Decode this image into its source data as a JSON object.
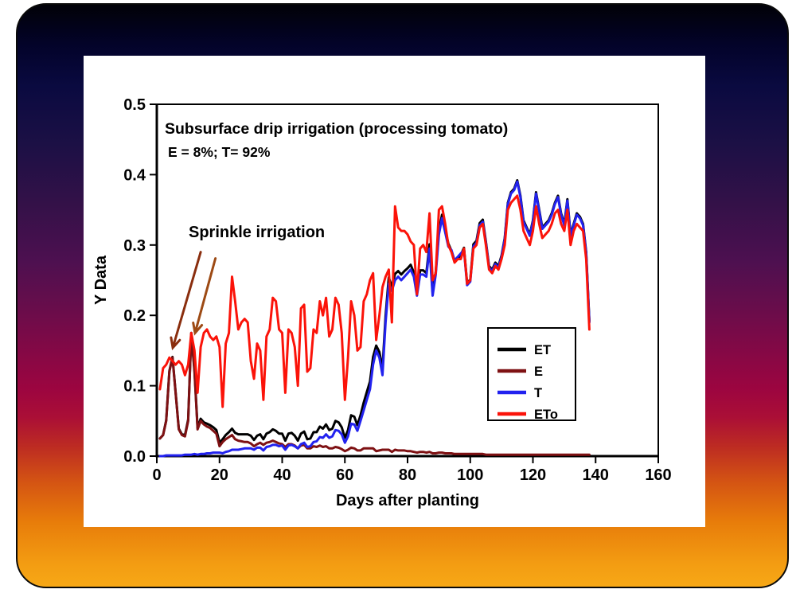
{
  "slide": {
    "background_gradient": [
      "#010107",
      "#0a0a40",
      "#331148",
      "#680d4b",
      "#9c0540",
      "#bd2c22",
      "#e87d0a",
      "#f7a816"
    ]
  },
  "chart": {
    "title": "Subsurface drip irrigation (processing tomato)",
    "subtitle": "E = 8%; T= 92%",
    "annotation": "Sprinkle irrigation",
    "x_axis": {
      "label": "Days after planting",
      "ticks": [
        0,
        20,
        40,
        60,
        80,
        100,
        120,
        140,
        160
      ]
    },
    "y_axis": {
      "label": "Y Data",
      "ticks": [
        "0.0",
        "0.1",
        "0.2",
        "0.3",
        "0.4",
        "0.5"
      ]
    },
    "legend": [
      {
        "label": "ET",
        "color": "#000000"
      },
      {
        "label": "E",
        "color": "#7e1113"
      },
      {
        "label": "T",
        "color": "#2222ef"
      },
      {
        "label": "ETo",
        "color": "#fb1309"
      }
    ],
    "annotation_arrows": [
      {
        "from": [
          14.0,
          0.29
        ],
        "to": [
          5.1,
          0.154
        ],
        "color": "#8a2e0e"
      },
      {
        "from": [
          18.7,
          0.281
        ],
        "to": [
          12.2,
          0.175
        ],
        "color": "#9d4a14"
      }
    ]
  },
  "chart_data": {
    "type": "line",
    "title": "Subsurface drip irrigation (processing tomato)",
    "subtitle": "E = 8%; T= 92%",
    "xlabel": "Days after planting",
    "ylabel": "Y Data",
    "xlim": [
      0,
      160
    ],
    "ylim": [
      0,
      0.5
    ],
    "grid": false,
    "legend_position": "right-center-inside",
    "x_start_day": 1,
    "x_step_days": 1,
    "n_points": 138,
    "series": [
      {
        "name": "ET",
        "color": "#000000",
        "values": [
          0.025,
          0.03,
          0.051,
          0.121,
          0.141,
          0.091,
          0.039,
          0.031,
          0.03,
          0.052,
          0.175,
          0.123,
          0.04,
          0.053,
          0.048,
          0.046,
          0.044,
          0.041,
          0.037,
          0.019,
          0.024,
          0.03,
          0.034,
          0.039,
          0.033,
          0.031,
          0.031,
          0.031,
          0.031,
          0.029,
          0.023,
          0.029,
          0.031,
          0.024,
          0.032,
          0.034,
          0.038,
          0.036,
          0.032,
          0.032,
          0.022,
          0.032,
          0.033,
          0.029,
          0.022,
          0.032,
          0.035,
          0.024,
          0.025,
          0.034,
          0.034,
          0.042,
          0.039,
          0.045,
          0.037,
          0.039,
          0.05,
          0.048,
          0.041,
          0.026,
          0.037,
          0.058,
          0.056,
          0.044,
          0.058,
          0.076,
          0.091,
          0.106,
          0.141,
          0.157,
          0.148,
          0.124,
          0.199,
          0.254,
          0.241,
          0.259,
          0.263,
          0.258,
          0.263,
          0.267,
          0.272,
          0.261,
          0.233,
          0.264,
          0.264,
          0.26,
          0.301,
          0.232,
          0.262,
          0.32,
          0.343,
          0.322,
          0.302,
          0.292,
          0.276,
          0.281,
          0.286,
          0.296,
          0.246,
          0.251,
          0.301,
          0.306,
          0.331,
          0.336,
          0.305,
          0.27,
          0.265,
          0.275,
          0.27,
          0.285,
          0.31,
          0.36,
          0.375,
          0.38,
          0.392,
          0.37,
          0.335,
          0.325,
          0.315,
          0.335,
          0.375,
          0.35,
          0.325,
          0.33,
          0.335,
          0.345,
          0.36,
          0.37,
          0.345,
          0.33,
          0.365,
          0.315,
          0.33,
          0.345,
          0.34,
          0.33,
          0.29,
          0.192
        ]
      },
      {
        "name": "E",
        "color": "#7e1113",
        "values": [
          0.025,
          0.03,
          0.05,
          0.12,
          0.14,
          0.09,
          0.038,
          0.03,
          0.028,
          0.05,
          0.173,
          0.12,
          0.038,
          0.05,
          0.045,
          0.042,
          0.04,
          0.036,
          0.032,
          0.014,
          0.02,
          0.024,
          0.027,
          0.03,
          0.024,
          0.022,
          0.021,
          0.02,
          0.02,
          0.018,
          0.014,
          0.017,
          0.019,
          0.016,
          0.019,
          0.02,
          0.022,
          0.02,
          0.018,
          0.017,
          0.013,
          0.017,
          0.017,
          0.015,
          0.011,
          0.015,
          0.016,
          0.011,
          0.011,
          0.014,
          0.013,
          0.015,
          0.013,
          0.014,
          0.011,
          0.011,
          0.013,
          0.012,
          0.01,
          0.007,
          0.009,
          0.012,
          0.011,
          0.008,
          0.008,
          0.011,
          0.011,
          0.011,
          0.011,
          0.007,
          0.008,
          0.009,
          0.009,
          0.009,
          0.006,
          0.009,
          0.008,
          0.008,
          0.008,
          0.007,
          0.007,
          0.006,
          0.005,
          0.006,
          0.006,
          0.005,
          0.006,
          0.004,
          0.004,
          0.005,
          0.005,
          0.004,
          0.004,
          0.004,
          0.003,
          0.003,
          0.003,
          0.003,
          0.003,
          0.003,
          0.003,
          0.003,
          0.003,
          0.003,
          0.002,
          0.002,
          0.002,
          0.002,
          0.002,
          0.002,
          0.002,
          0.002,
          0.002,
          0.002,
          0.002,
          0.002,
          0.002,
          0.002,
          0.002,
          0.002,
          0.002,
          0.002,
          0.002,
          0.002,
          0.002,
          0.002,
          0.002,
          0.002,
          0.002,
          0.002,
          0.002,
          0.002,
          0.002,
          0.002,
          0.002,
          0.002,
          0.002,
          0.002
        ]
      },
      {
        "name": "T",
        "color": "#2222ef",
        "values": [
          0,
          0,
          0.001,
          0.001,
          0.001,
          0.001,
          0.001,
          0.001,
          0.002,
          0.002,
          0.002,
          0.003,
          0.002,
          0.003,
          0.003,
          0.004,
          0.004,
          0.005,
          0.005,
          0.005,
          0.004,
          0.006,
          0.007,
          0.009,
          0.009,
          0.009,
          0.01,
          0.011,
          0.011,
          0.011,
          0.009,
          0.012,
          0.012,
          0.008,
          0.013,
          0.014,
          0.016,
          0.016,
          0.014,
          0.015,
          0.009,
          0.015,
          0.016,
          0.014,
          0.011,
          0.017,
          0.019,
          0.013,
          0.014,
          0.02,
          0.021,
          0.027,
          0.026,
          0.031,
          0.026,
          0.028,
          0.037,
          0.036,
          0.031,
          0.019,
          0.028,
          0.046,
          0.045,
          0.036,
          0.05,
          0.065,
          0.08,
          0.095,
          0.13,
          0.15,
          0.14,
          0.115,
          0.19,
          0.245,
          0.235,
          0.25,
          0.255,
          0.25,
          0.255,
          0.26,
          0.265,
          0.255,
          0.228,
          0.258,
          0.258,
          0.255,
          0.295,
          0.228,
          0.258,
          0.315,
          0.338,
          0.318,
          0.298,
          0.293,
          0.278,
          0.283,
          0.288,
          0.293,
          0.243,
          0.248,
          0.298,
          0.303,
          0.328,
          0.333,
          0.303,
          0.268,
          0.263,
          0.273,
          0.268,
          0.283,
          0.308,
          0.358,
          0.373,
          0.378,
          0.39,
          0.368,
          0.333,
          0.323,
          0.313,
          0.333,
          0.373,
          0.348,
          0.323,
          0.328,
          0.333,
          0.343,
          0.358,
          0.368,
          0.343,
          0.328,
          0.363,
          0.313,
          0.328,
          0.343,
          0.338,
          0.328,
          0.288,
          0.19
        ]
      },
      {
        "name": "ETo",
        "color": "#fb1309",
        "values": [
          0.095,
          0.125,
          0.13,
          0.14,
          0.135,
          0.13,
          0.135,
          0.13,
          0.115,
          0.13,
          0.175,
          0.15,
          0.09,
          0.155,
          0.175,
          0.18,
          0.17,
          0.165,
          0.17,
          0.155,
          0.07,
          0.16,
          0.175,
          0.255,
          0.22,
          0.18,
          0.19,
          0.195,
          0.19,
          0.135,
          0.11,
          0.16,
          0.15,
          0.08,
          0.17,
          0.18,
          0.225,
          0.22,
          0.18,
          0.175,
          0.09,
          0.18,
          0.175,
          0.155,
          0.1,
          0.21,
          0.215,
          0.12,
          0.125,
          0.18,
          0.175,
          0.22,
          0.2,
          0.225,
          0.17,
          0.18,
          0.225,
          0.215,
          0.175,
          0.08,
          0.14,
          0.22,
          0.2,
          0.15,
          0.155,
          0.22,
          0.23,
          0.25,
          0.26,
          0.165,
          0.2,
          0.24,
          0.255,
          0.265,
          0.19,
          0.355,
          0.325,
          0.32,
          0.32,
          0.315,
          0.305,
          0.3,
          0.23,
          0.295,
          0.3,
          0.29,
          0.345,
          0.25,
          0.26,
          0.35,
          0.355,
          0.33,
          0.3,
          0.29,
          0.275,
          0.28,
          0.28,
          0.295,
          0.245,
          0.25,
          0.295,
          0.3,
          0.325,
          0.33,
          0.3,
          0.265,
          0.26,
          0.27,
          0.265,
          0.28,
          0.3,
          0.35,
          0.36,
          0.365,
          0.37,
          0.35,
          0.32,
          0.31,
          0.3,
          0.32,
          0.355,
          0.33,
          0.31,
          0.315,
          0.32,
          0.33,
          0.345,
          0.35,
          0.33,
          0.32,
          0.35,
          0.3,
          0.32,
          0.33,
          0.325,
          0.32,
          0.28,
          0.18
        ]
      }
    ],
    "annotations": [
      {
        "text": "Sprinkle irrigation",
        "arrow_target_days": [
          5,
          11
        ]
      }
    ]
  }
}
